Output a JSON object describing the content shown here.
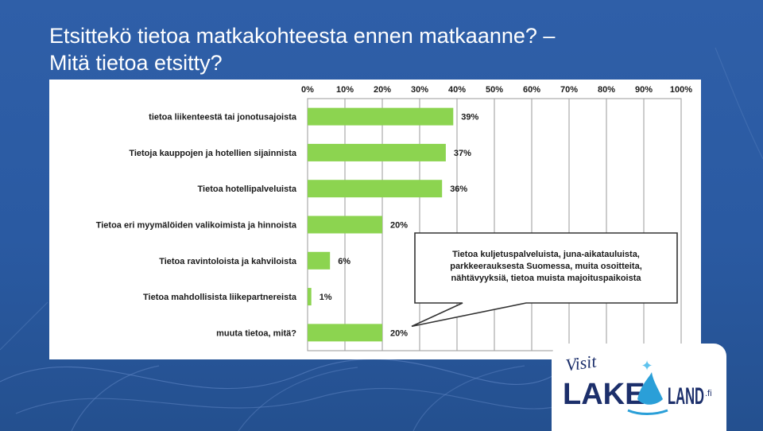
{
  "slide": {
    "title_line1": "Etsittekö tietoa matkakohteesta ennen matkaanne? –",
    "title_line2": "Mitä tietoa etsitty?"
  },
  "colors": {
    "background": "#2f5fa8",
    "bar": "#8cd450",
    "grid": "#9a9a9a",
    "text": "#1a1a1a"
  },
  "chart_data": {
    "type": "bar",
    "orientation": "horizontal",
    "categories": [
      "tietoa liikenteestä tai jonotusajoista",
      "Tietoja kauppojen ja hotellien sijainnista",
      "Tietoa hotellipalveluista",
      "Tietoa eri myymälöiden valikoimista ja hinnoista",
      "Tietoa ravintoloista ja kahviloista",
      "Tietoa mahdollisista liikepartnereista",
      "muuta tietoa, mitä?"
    ],
    "values": [
      39,
      37,
      36,
      20,
      6,
      1,
      20
    ],
    "value_labels": [
      "39%",
      "37%",
      "36%",
      "20%",
      "6%",
      "1%",
      "20%"
    ],
    "xticks": [
      "0%",
      "10%",
      "20%",
      "30%",
      "40%",
      "50%",
      "60%",
      "70%",
      "80%",
      "90%",
      "100%"
    ],
    "xlim": [
      0,
      100
    ],
    "axis_position": "top",
    "grid": true,
    "annotation": {
      "lines": [
        "Tietoa kuljetuspalveluista, juna-aikatauluista,",
        "parkkeerauksesta Suomessa, muita osoitteita,",
        "nähtävyyksiä, tietoa muista majoituspaikoista"
      ],
      "points_to": "muuta tietoa, mitä?"
    }
  },
  "logo": {
    "script_text": "Visit",
    "word_left": "LAKE",
    "word_right": "LAND",
    "suffix": ".fi",
    "colors": {
      "navy": "#1c2f6b",
      "splash": "#2a9fd8",
      "star": "#5fc3ee"
    }
  }
}
